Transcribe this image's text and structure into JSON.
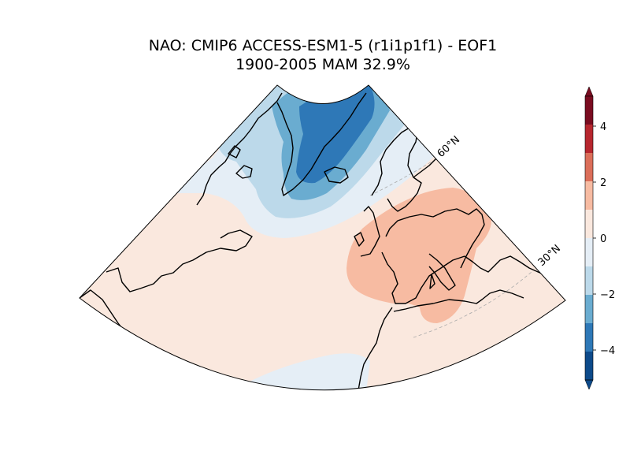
{
  "title": {
    "line1": "NAO: CMIP6 ACCESS-ESM1-5 (r1i1p1f1) - EOF1",
    "line2": "1900-2005 MAM 32.9%"
  },
  "gridlines": {
    "lat_60": "60°N",
    "lat_30": "30°N"
  },
  "colorbar": {
    "ticks": [
      "4",
      "2",
      "0",
      "−2",
      "−4"
    ],
    "tick_values": [
      4,
      2,
      0,
      -2,
      -4
    ],
    "range": [
      -5,
      5
    ],
    "colors": [
      "#0d4a8a",
      "#2e78b7",
      "#6aacd0",
      "#bcd9ea",
      "#e5eef6",
      "#fae8de",
      "#f7bba2",
      "#db6e59",
      "#b7262e",
      "#7a0c20"
    ]
  },
  "map": {
    "projection": "conic",
    "region": "North Atlantic",
    "colors": {
      "dark_blue": "#2e78b7",
      "mid_blue": "#6aacd0",
      "light_blue": "#bcd9ea",
      "pale_blue": "#e5eef6",
      "pale_red": "#fae8de",
      "light_red": "#f7bba2"
    }
  }
}
